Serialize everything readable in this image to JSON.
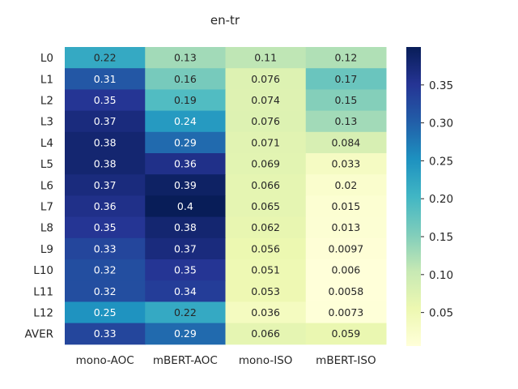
{
  "chart_data": {
    "type": "heatmap",
    "title": "en-tr",
    "rows": [
      "L0",
      "L1",
      "L2",
      "L3",
      "L4",
      "L5",
      "L6",
      "L7",
      "L8",
      "L9",
      "L10",
      "L11",
      "L12",
      "AVER"
    ],
    "columns": [
      "mono-AOC",
      "mBERT-AOC",
      "mono-ISO",
      "mBERT-ISO"
    ],
    "values": [
      [
        0.22,
        0.13,
        0.11,
        0.12
      ],
      [
        0.31,
        0.16,
        0.076,
        0.17
      ],
      [
        0.35,
        0.19,
        0.074,
        0.15
      ],
      [
        0.37,
        0.24,
        0.076,
        0.13
      ],
      [
        0.38,
        0.29,
        0.071,
        0.084
      ],
      [
        0.38,
        0.36,
        0.069,
        0.033
      ],
      [
        0.37,
        0.39,
        0.066,
        0.02
      ],
      [
        0.36,
        0.4,
        0.065,
        0.015
      ],
      [
        0.35,
        0.38,
        0.062,
        0.013
      ],
      [
        0.33,
        0.37,
        0.056,
        0.0097
      ],
      [
        0.32,
        0.35,
        0.051,
        0.006
      ],
      [
        0.32,
        0.34,
        0.053,
        0.0058
      ],
      [
        0.25,
        0.22,
        0.036,
        0.0073
      ],
      [
        0.33,
        0.29,
        0.066,
        0.059
      ]
    ],
    "colormap": "YlGnBu",
    "vmin": 0.0058,
    "vmax": 0.4,
    "colorbar_ticks": [
      "0.05",
      "0.10",
      "0.15",
      "0.20",
      "0.25",
      "0.30",
      "0.35"
    ]
  }
}
